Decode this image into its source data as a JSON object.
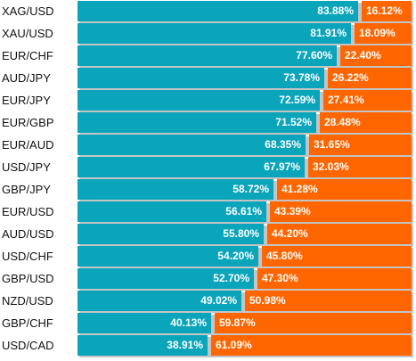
{
  "colors": {
    "long": "#0aa5bb",
    "short": "#ff6600",
    "separator": "#ffffff"
  },
  "chart_data": {
    "type": "bar",
    "stacked": true,
    "orientation": "horizontal",
    "categories": [
      "XAG/USD",
      "XAU/USD",
      "EUR/CHF",
      "AUD/JPY",
      "EUR/JPY",
      "EUR/GBP",
      "EUR/AUD",
      "USD/JPY",
      "GBP/JPY",
      "EUR/USD",
      "AUD/USD",
      "USD/CHF",
      "GBP/USD",
      "NZD/USD",
      "GBP/CHF",
      "USD/CAD"
    ],
    "series": [
      {
        "color": "#0aa5bb",
        "values": [
          83.88,
          81.91,
          77.6,
          73.78,
          72.59,
          71.52,
          68.35,
          67.97,
          58.72,
          56.61,
          55.8,
          54.2,
          52.7,
          49.02,
          40.13,
          38.91
        ],
        "labels": [
          "83.88%",
          "81.91%",
          "77.60%",
          "73.78%",
          "72.59%",
          "71.52%",
          "68.35%",
          "67.97%",
          "58.72%",
          "56.61%",
          "55.80%",
          "54.20%",
          "52.70%",
          "49.02%",
          "40.13%",
          "38.91%"
        ]
      },
      {
        "color": "#ff6600",
        "values": [
          16.12,
          18.09,
          22.4,
          26.22,
          27.41,
          28.48,
          31.65,
          32.03,
          41.28,
          43.39,
          44.2,
          45.8,
          47.3,
          50.98,
          59.87,
          61.09
        ],
        "labels": [
          "16.12%",
          "18.09%",
          "22.40%",
          "26.22%",
          "27.41%",
          "28.48%",
          "31.65%",
          "32.03%",
          "41.28%",
          "43.39%",
          "44.20%",
          "45.80%",
          "47.30%",
          "50.98%",
          "59.87%",
          "61.09%"
        ]
      }
    ],
    "xlim": [
      0,
      100
    ]
  }
}
